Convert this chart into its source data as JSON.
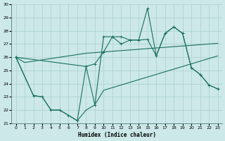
{
  "xlabel": "Humidex (Indice chaleur)",
  "xlim": [
    -0.5,
    23.5
  ],
  "ylim": [
    21,
    30
  ],
  "yticks": [
    21,
    22,
    23,
    24,
    25,
    26,
    27,
    28,
    29,
    30
  ],
  "xticks": [
    0,
    1,
    2,
    3,
    4,
    5,
    6,
    7,
    8,
    9,
    10,
    11,
    12,
    13,
    14,
    15,
    16,
    17,
    18,
    19,
    20,
    21,
    22,
    23
  ],
  "bg_color": "#cce8e8",
  "grid_color": "#aacfcf",
  "line_color": "#1a7060",
  "line1_x": [
    0,
    1,
    2,
    3,
    4,
    5,
    6,
    7,
    8,
    9,
    10,
    11,
    12,
    13,
    14,
    15,
    16,
    17,
    18,
    19,
    20,
    21,
    22,
    23
  ],
  "line1_y": [
    26.0,
    25.6,
    25.7,
    25.8,
    25.9,
    26.0,
    26.1,
    26.2,
    26.3,
    26.35,
    26.4,
    26.45,
    26.5,
    26.55,
    26.6,
    26.65,
    26.7,
    26.75,
    26.8,
    26.85,
    26.9,
    26.95,
    27.0,
    27.05
  ],
  "line2_x": [
    0,
    2,
    3,
    4,
    5,
    6,
    7,
    8,
    9,
    10,
    11,
    12,
    13,
    14,
    15,
    16,
    17,
    18,
    19,
    20,
    21,
    22,
    23
  ],
  "line2_y": [
    26.0,
    23.1,
    23.0,
    22.0,
    22.0,
    21.6,
    21.2,
    22.0,
    22.4,
    23.5,
    23.7,
    23.9,
    24.1,
    24.3,
    24.5,
    24.7,
    24.9,
    25.1,
    25.3,
    25.5,
    25.7,
    25.9,
    26.1
  ],
  "line3_x": [
    0,
    8,
    9,
    10,
    11,
    12,
    13,
    14,
    15,
    16,
    17,
    18,
    19,
    20,
    21,
    22,
    23
  ],
  "line3_y": [
    26.0,
    25.3,
    25.5,
    26.4,
    27.55,
    27.55,
    27.3,
    27.3,
    27.35,
    26.1,
    27.8,
    28.3,
    27.8,
    25.2,
    24.7,
    23.9,
    23.6
  ],
  "line4_x": [
    0,
    2,
    3,
    4,
    5,
    6,
    7,
    8,
    9,
    10,
    11,
    12,
    13,
    14,
    15,
    16,
    17,
    18,
    19,
    20,
    21,
    22,
    23
  ],
  "line4_y": [
    26.0,
    23.1,
    23.0,
    22.0,
    22.0,
    21.6,
    21.2,
    25.3,
    22.4,
    27.55,
    27.55,
    27.0,
    27.3,
    27.3,
    29.7,
    26.1,
    27.8,
    28.3,
    27.8,
    25.2,
    24.7,
    23.9,
    23.6
  ]
}
